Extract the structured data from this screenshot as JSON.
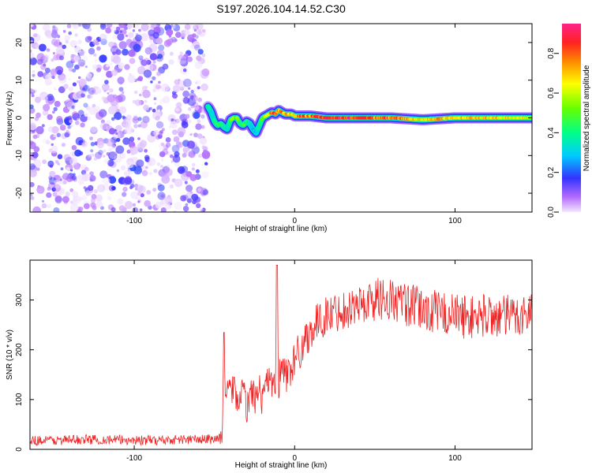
{
  "figure": {
    "title": "S197.2026.104.14.52.C30"
  },
  "chart_data": [
    {
      "type": "heatmap",
      "title": "S197.2026.104.14.52.C30",
      "xlabel": "Height of straight line (km)",
      "ylabel": "Frequency (Hz)",
      "xlim": [
        -165,
        148
      ],
      "ylim": [
        -25,
        25
      ],
      "xticks": [
        -100,
        0,
        100
      ],
      "yticks": [
        -20,
        -10,
        0,
        10,
        20
      ],
      "xtick_labels": [
        "-100",
        "0",
        "100"
      ],
      "ytick_labels": [
        "-20",
        "-10",
        "0",
        "10",
        "20"
      ],
      "noise_region_x": [
        -165,
        -55
      ],
      "ridge": {
        "x": [
          -54,
          -52,
          -50,
          -48,
          -46,
          -44,
          -42,
          -40,
          -38,
          -36,
          -34,
          -32,
          -30,
          -28,
          -26,
          -24,
          -22,
          -20,
          -18,
          -16,
          -14,
          -12,
          -10,
          -8,
          -6,
          -4,
          -2,
          0,
          10,
          20,
          40,
          60,
          80,
          100,
          120,
          148
        ],
        "frequency_hz": [
          3,
          1.5,
          -1,
          -2,
          -1.5,
          -2.5,
          -3,
          -0.5,
          0,
          0,
          -1.5,
          -2,
          -1,
          -1.5,
          -3,
          -4,
          -2,
          0,
          0.5,
          1,
          1.5,
          1,
          2,
          1.5,
          1,
          1,
          1,
          0.5,
          0.5,
          0,
          0,
          0,
          -0.5,
          0,
          0,
          0
        ],
        "amplitude": [
          0.45,
          0.35,
          0.4,
          0.45,
          0.5,
          0.4,
          0.35,
          0.5,
          0.6,
          0.55,
          0.45,
          0.5,
          0.4,
          0.35,
          0.3,
          0.3,
          0.4,
          0.5,
          0.6,
          0.7,
          0.8,
          0.85,
          0.75,
          0.8,
          0.7,
          0.75,
          0.7,
          0.7,
          0.75,
          0.9,
          0.9,
          0.8,
          0.7,
          0.75,
          0.7,
          0.65
        ]
      },
      "colorbar": {
        "label": "Normalized spectral amplitude",
        "range": [
          0,
          0.95
        ],
        "ticks": [
          0.0,
          0.2,
          0.4,
          0.6,
          0.8
        ],
        "tick_labels": [
          "0.0",
          "0.2",
          "0.4",
          "0.6",
          "0.8"
        ]
      }
    },
    {
      "type": "line",
      "xlabel": "Height of straight line (km)",
      "ylabel": "SNR (10 * v/v)",
      "xlim": [
        -165,
        148
      ],
      "ylim": [
        0,
        380
      ],
      "xticks": [
        -100,
        0,
        100
      ],
      "yticks": [
        0,
        100,
        200,
        300
      ],
      "xtick_labels": [
        "-100",
        "0",
        "100"
      ],
      "ytick_labels": [
        "0",
        "100",
        "200",
        "300"
      ],
      "series": [
        {
          "name": "SNR",
          "color": "#ee2222",
          "x": [
            -165,
            -150,
            -130,
            -110,
            -90,
            -70,
            -55,
            -47,
            -45,
            -44,
            -43,
            -42,
            -40,
            -38,
            -35,
            -32,
            -30,
            -27,
            -24,
            -22,
            -20,
            -18,
            -15,
            -12,
            -11,
            -10,
            -8,
            -5,
            -2,
            0,
            5,
            10,
            15,
            20,
            25,
            30,
            40,
            50,
            55,
            60,
            70,
            80,
            90,
            100,
            110,
            120,
            130,
            140,
            148
          ],
          "values": [
            18,
            18,
            20,
            19,
            18,
            20,
            20,
            22,
            30,
            235,
            70,
            150,
            110,
            130,
            90,
            120,
            80,
            120,
            95,
            140,
            90,
            150,
            120,
            130,
            370,
            140,
            160,
            150,
            165,
            180,
            210,
            240,
            255,
            270,
            275,
            280,
            290,
            300,
            305,
            300,
            290,
            280,
            275,
            270,
            265,
            270,
            265,
            270,
            275
          ],
          "noise_amplitude": [
            10,
            10,
            10,
            10,
            10,
            10,
            10,
            12,
            20,
            0,
            30,
            30,
            30,
            30,
            30,
            30,
            30,
            30,
            30,
            30,
            30,
            35,
            35,
            35,
            0,
            40,
            40,
            40,
            40,
            40,
            40,
            40,
            40,
            40,
            40,
            40,
            40,
            45,
            45,
            45,
            45,
            45,
            45,
            45,
            45,
            45,
            45,
            45,
            45
          ]
        }
      ]
    }
  ]
}
